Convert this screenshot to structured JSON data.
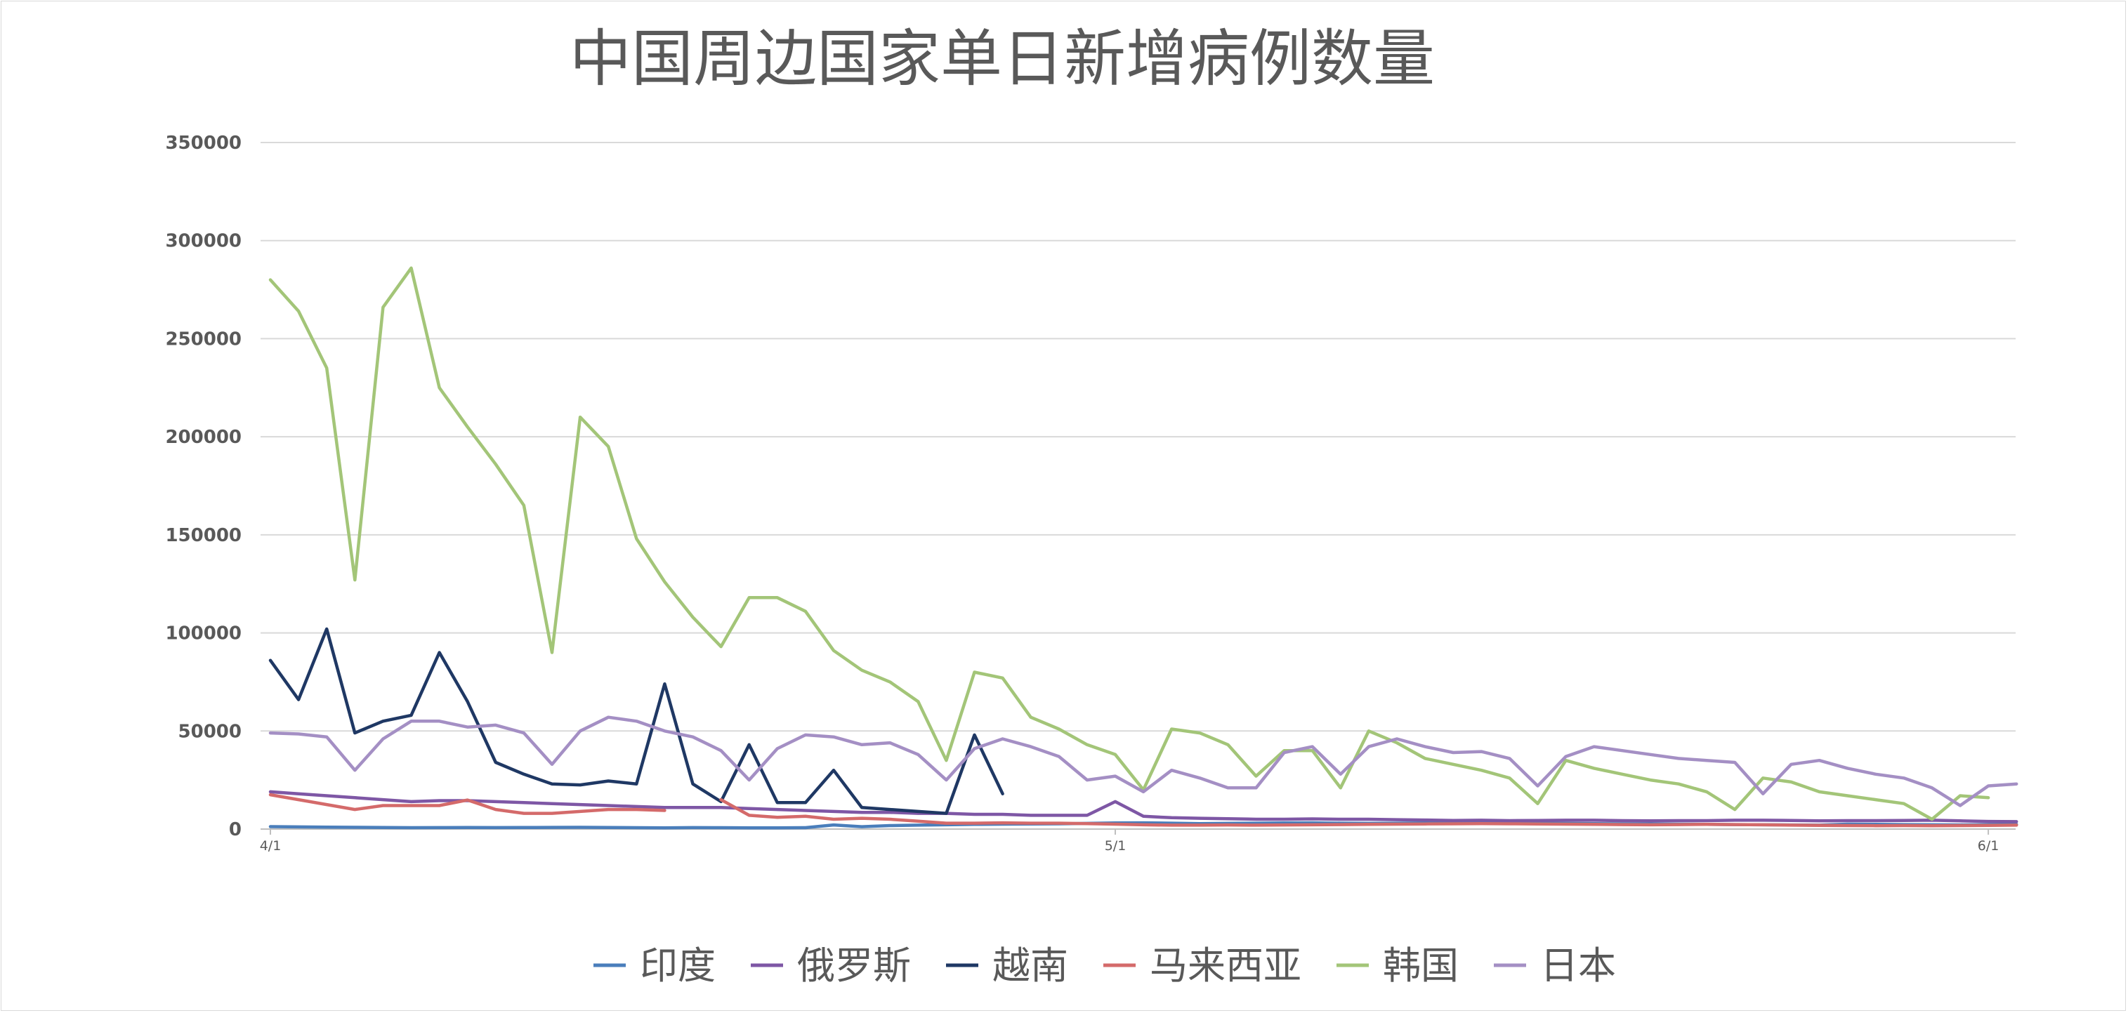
{
  "chart_data": {
    "type": "line",
    "title": "中国周边国家单日新增病例数量",
    "xlabel": "",
    "ylabel": "",
    "ylim": [
      0,
      350000
    ],
    "yticks": [
      0,
      50000,
      100000,
      150000,
      200000,
      250000,
      300000,
      350000
    ],
    "ytick_labels": [
      "0",
      "50000",
      "100000",
      "150000",
      "200000",
      "250000",
      "300000",
      "350000"
    ],
    "x": [
      "4/1",
      "4/2",
      "4/3",
      "4/4",
      "4/5",
      "4/6",
      "4/7",
      "4/8",
      "4/9",
      "4/10",
      "4/11",
      "4/12",
      "4/13",
      "4/14",
      "4/15",
      "4/16",
      "4/17",
      "4/18",
      "4/19",
      "4/20",
      "4/21",
      "4/22",
      "4/23",
      "4/24",
      "4/25",
      "4/26",
      "4/27",
      "4/28",
      "4/29",
      "4/30",
      "5/1",
      "5/2",
      "5/3",
      "5/4",
      "5/5",
      "5/6",
      "5/7",
      "5/8",
      "5/9",
      "5/10",
      "5/11",
      "5/12",
      "5/13",
      "5/14",
      "5/15",
      "5/16",
      "5/17",
      "5/18",
      "5/19",
      "5/20",
      "5/21",
      "5/22",
      "5/23",
      "5/24",
      "5/25",
      "5/26",
      "5/27",
      "5/28",
      "5/29",
      "5/30",
      "5/31",
      "6/1",
      "6/2"
    ],
    "xtick_labels": [
      {
        "index": 0,
        "label": "4/1"
      },
      {
        "index": 30,
        "label": "5/1"
      },
      {
        "index": 61,
        "label": "6/1"
      }
    ],
    "grid": true,
    "legend_position": "bottom",
    "series": [
      {
        "name": "印度",
        "color": "#4a7ebb",
        "values": [
          1260,
          1100,
          1000,
          900,
          800,
          700,
          750,
          800,
          750,
          800,
          850,
          900,
          800,
          700,
          650,
          750,
          700,
          650,
          600,
          700,
          2100,
          1200,
          1800,
          2000,
          2200,
          2400,
          2500,
          2600,
          2700,
          2900,
          3100,
          3200,
          3000,
          2800,
          2900,
          3000,
          3100,
          3200,
          3000,
          2900,
          3000,
          3100,
          3200,
          3300,
          3100,
          3000,
          2900,
          2800,
          2700,
          2600,
          2500,
          2400,
          2300,
          2200,
          2100,
          2000,
          2500,
          2400,
          2300,
          2200,
          2100,
          2300,
          2400
        ]
      },
      {
        "name": "俄罗斯",
        "color": "#7e57a5",
        "values": [
          19000,
          18000,
          17000,
          16000,
          15000,
          14000,
          14500,
          14500,
          14000,
          13500,
          13000,
          12500,
          12000,
          11500,
          11000,
          11000,
          11000,
          10500,
          10000,
          9500,
          9000,
          8500,
          8500,
          8000,
          8000,
          7500,
          7500,
          7000,
          7000,
          7000,
          14000,
          6500,
          5800,
          5500,
          5300,
          5000,
          5000,
          5200,
          5000,
          5000,
          4800,
          4600,
          4400,
          4500,
          4300,
          4400,
          4500,
          4500,
          4300,
          4200,
          4300,
          4300,
          4500,
          4500,
          4400,
          4200,
          4300,
          4300,
          4400,
          4500,
          4200,
          3900,
          3800
        ]
      },
      {
        "name": "越南",
        "color": "#1f3864",
        "values": [
          86000,
          66000,
          102000,
          49000,
          55000,
          58000,
          90000,
          65000,
          34000,
          28000,
          23000,
          22500,
          24500,
          23000,
          74000,
          23000,
          14000,
          43000,
          13500,
          13500,
          30000,
          11000,
          10000,
          9000,
          8000,
          48000,
          18000,
          null,
          null,
          null,
          null,
          null,
          null,
          null,
          null,
          null,
          null,
          null,
          null,
          null,
          null,
          null,
          null,
          null,
          null,
          null,
          null,
          null,
          null,
          null,
          null,
          null,
          null,
          null,
          null,
          null,
          null,
          null,
          null,
          null,
          null,
          null,
          null
        ]
      },
      {
        "name": "马来西亚",
        "color": "#d46a6a",
        "values": [
          17500,
          15000,
          12500,
          10000,
          12000,
          12000,
          12000,
          14800,
          10000,
          8000,
          8000,
          9000,
          10000,
          10000,
          9500,
          null,
          15000,
          7000,
          6000,
          6500,
          5000,
          5500,
          5000,
          4000,
          3000,
          3000,
          3200,
          3000,
          3000,
          2800,
          2500,
          2200,
          2000,
          2000,
          2100,
          2000,
          2100,
          2200,
          2300,
          2400,
          2500,
          2600,
          2700,
          2800,
          2700,
          2600,
          2500,
          2400,
          2300,
          2200,
          2300,
          2400,
          2300,
          2200,
          2000,
          1900,
          1800,
          1700,
          1800,
          1700,
          1800,
          1900,
          2000
        ]
      },
      {
        "name": "韩国",
        "color": "#a3c578",
        "values": [
          280000,
          264000,
          235000,
          127000,
          266000,
          286000,
          225000,
          205000,
          186000,
          165000,
          90000,
          210000,
          195000,
          148000,
          126000,
          108000,
          93000,
          118000,
          118000,
          111000,
          91000,
          81000,
          75000,
          65000,
          35000,
          80000,
          77000,
          57000,
          51000,
          43000,
          38000,
          20000,
          51000,
          49000,
          43000,
          27000,
          40000,
          40000,
          21000,
          50000,
          44000,
          36000,
          33000,
          30000,
          26000,
          13000,
          35000,
          31000,
          28000,
          25000,
          23000,
          19000,
          10000,
          26000,
          24000,
          19000,
          17000,
          15000,
          13000,
          5000,
          17000,
          16000,
          null
        ]
      },
      {
        "name": "日本",
        "color": "#a48fc4",
        "values": [
          49000,
          48500,
          47000,
          30000,
          46000,
          55000,
          55000,
          52000,
          53000,
          49000,
          33000,
          50000,
          57000,
          55000,
          50000,
          47000,
          40000,
          25000,
          41000,
          48000,
          47000,
          43000,
          44000,
          38000,
          25000,
          41000,
          46000,
          42000,
          37000,
          25000,
          27000,
          19000,
          30000,
          26000,
          21000,
          21000,
          39000,
          42000,
          28000,
          42000,
          46000,
          42000,
          39000,
          39500,
          36000,
          22000,
          37000,
          42000,
          40000,
          38000,
          36000,
          35000,
          34000,
          18000,
          33000,
          35000,
          31000,
          28000,
          26000,
          21000,
          12000,
          22000,
          23000
        ]
      }
    ]
  }
}
